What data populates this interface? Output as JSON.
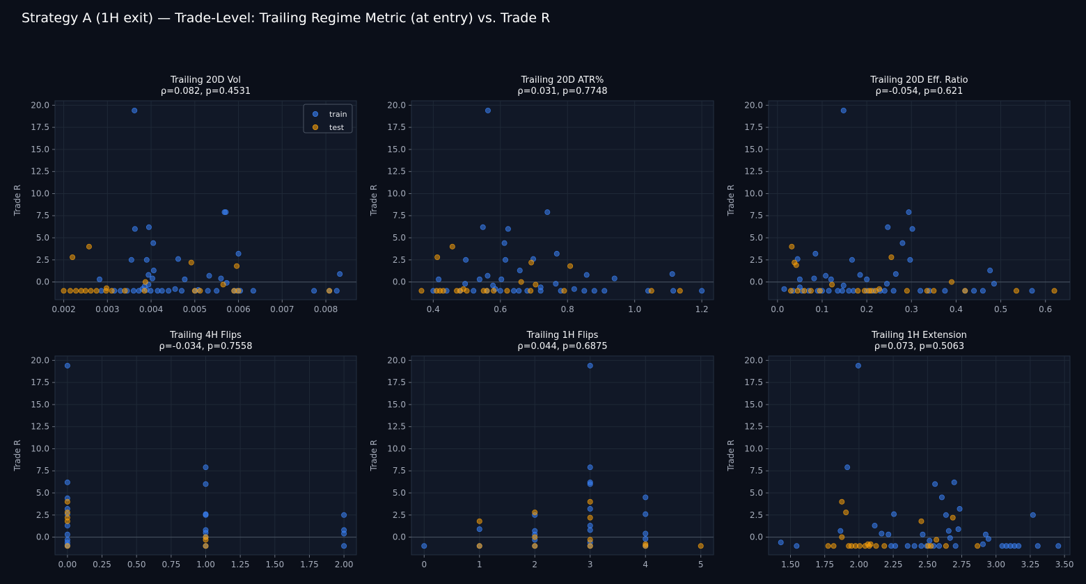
{
  "figure": {
    "title": "Strategy A (1H exit) — Trade-Level: Trailing Regime Metric (at entry) vs. Trade R"
  },
  "colors": {
    "background": "#0b0f19",
    "panel": "#111827",
    "grid": "#1f2937",
    "zero_line": "#4b5563",
    "train": "#3b82f6",
    "test": "#f59e0b"
  },
  "legend": {
    "placement": "upper-right",
    "panel": 0,
    "entries": [
      "train",
      "test"
    ]
  },
  "chart_data": [
    {
      "type": "scatter",
      "title": "Trailing 20D Vol",
      "subtitle": "ρ=0.082, p=0.4531",
      "xlabel": "",
      "ylabel": "Trade R",
      "xlim": [
        0.0018,
        0.0087
      ],
      "ylim": [
        -2.0,
        20.5
      ],
      "xticks": [
        0.002,
        0.003,
        0.004,
        0.005,
        0.006,
        0.007,
        0.008
      ],
      "xtick_labels": [
        "0.002",
        "0.003",
        "0.004",
        "0.005",
        "0.006",
        "0.007",
        "0.008"
      ],
      "yticks": [
        0,
        2.5,
        5,
        7.5,
        10,
        12.5,
        15,
        17.5,
        20
      ],
      "ytick_labels": [
        "0.0",
        "2.5",
        "5.0",
        "7.5",
        "10.0",
        "12.5",
        "15.0",
        "17.5",
        "20.0"
      ],
      "grid": true,
      "series": [
        {
          "name": "train",
          "x": [
            0.00362,
            0.00568,
            0.00363,
            0.00395,
            0.00405,
            0.00571,
            0.00355,
            0.0039,
            0.00462,
            0.006,
            0.00406,
            0.00832,
            0.00394,
            0.00533,
            0.00282,
            0.00403,
            0.0056,
            0.00477,
            0.00573,
            0.00385,
            0.00394,
            0.0038,
            0.0039,
            0.00399,
            0.00286,
            0.00316,
            0.0033,
            0.00345,
            0.0036,
            0.00372,
            0.00415,
            0.00425,
            0.0044,
            0.00455,
            0.0047,
            0.00501,
            0.0053,
            0.0055,
            0.0059,
            0.00597,
            0.00604,
            0.00634,
            0.00773,
            0.00808,
            0.00825,
            0.00508
          ],
          "y": [
            19.4,
            7.9,
            6.0,
            6.2,
            4.4,
            7.9,
            2.5,
            2.5,
            2.6,
            3.2,
            1.3,
            0.9,
            0.8,
            0.7,
            0.3,
            0.4,
            0.4,
            0.3,
            -0.1,
            -0.5,
            -0.3,
            -0.8,
            -0.9,
            -1.0,
            -1.0,
            -1.0,
            -1.0,
            -1.0,
            -1.0,
            -1.0,
            -1.0,
            -1.0,
            -1.0,
            -0.8,
            -1.0,
            -1.0,
            -1.0,
            -1.0,
            -1.0,
            -1.0,
            -1.0,
            -1.0,
            -1.0,
            -1.0,
            -1.0,
            -0.9
          ]
        },
        {
          "name": "test",
          "x": [
            0.0022,
            0.00258,
            0.00492,
            0.00596,
            0.00387,
            0.00565,
            0.002,
            0.00215,
            0.00228,
            0.0024,
            0.0025,
            0.00262,
            0.00275,
            0.00297,
            0.0031,
            0.0034,
            0.00385,
            0.005,
            0.00512,
            0.0059,
            0.006,
            0.00808,
            0.00298
          ],
          "y": [
            2.8,
            4.0,
            2.2,
            1.8,
            0.0,
            -0.3,
            -1.0,
            -1.0,
            -1.0,
            -1.0,
            -1.0,
            -1.0,
            -1.0,
            -1.0,
            -1.0,
            -1.0,
            -1.0,
            -1.0,
            -1.0,
            -1.0,
            -1.0,
            -1.0,
            -0.7
          ]
        }
      ]
    },
    {
      "type": "scatter",
      "title": "Trailing 20D ATR%",
      "subtitle": "ρ=0.031, p=0.7748",
      "xlabel": "",
      "ylabel": "Trade R",
      "xlim": [
        0.335,
        1.235
      ],
      "ylim": [
        -2.0,
        20.5
      ],
      "xticks": [
        0.4,
        0.6,
        0.8,
        1.0,
        1.2
      ],
      "xtick_labels": [
        "0.4",
        "0.6",
        "0.8",
        "1.0",
        "1.2"
      ],
      "yticks": [
        0,
        2.5,
        5,
        7.5,
        10,
        12.5,
        15,
        17.5,
        20
      ],
      "ytick_labels": [
        "0.0",
        "2.5",
        "5.0",
        "7.5",
        "10.0",
        "12.5",
        "15.0",
        "17.5",
        "20.0"
      ],
      "grid": true,
      "series": [
        {
          "name": "train",
          "x": [
            0.563,
            0.74,
            0.548,
            0.623,
            0.612,
            0.615,
            0.768,
            0.698,
            0.497,
            0.857,
            0.94,
            1.112,
            0.562,
            0.416,
            0.495,
            0.538,
            0.603,
            0.658,
            0.765,
            0.578,
            0.72,
            0.585,
            0.4,
            0.44,
            0.48,
            0.52,
            0.56,
            0.6,
            0.64,
            0.655,
            0.68,
            0.72,
            0.78,
            0.82,
            0.85,
            0.88,
            0.91,
            1.04,
            1.115,
            1.2
          ],
          "y": [
            19.4,
            7.9,
            6.2,
            6.0,
            4.4,
            2.5,
            3.2,
            2.6,
            2.5,
            0.8,
            0.4,
            0.9,
            0.7,
            0.3,
            -0.2,
            0.3,
            0.3,
            1.3,
            -0.2,
            -0.4,
            -0.6,
            -0.8,
            -1.0,
            -1.0,
            -1.0,
            -1.0,
            -1.0,
            -1.0,
            -1.0,
            -1.0,
            -1.0,
            -1.0,
            -1.0,
            -0.8,
            -1.0,
            -1.0,
            -1.0,
            -1.0,
            -1.0,
            -1.0
          ]
        },
        {
          "name": "test",
          "x": [
            0.412,
            0.457,
            0.692,
            0.808,
            0.662,
            0.705,
            0.365,
            0.41,
            0.42,
            0.43,
            0.47,
            0.48,
            0.49,
            0.5,
            0.55,
            0.56,
            0.58,
            0.62,
            0.69,
            0.79,
            1.05,
            1.135
          ],
          "y": [
            2.8,
            4.0,
            2.2,
            1.8,
            0.0,
            -0.3,
            -1.0,
            -1.0,
            -1.0,
            -1.0,
            -1.0,
            -1.0,
            -0.8,
            -1.0,
            -1.0,
            -1.0,
            -1.0,
            -1.0,
            -1.0,
            -1.0,
            -1.0,
            -1.0
          ]
        }
      ]
    },
    {
      "type": "scatter",
      "title": "Trailing 20D Eff. Ratio",
      "subtitle": "ρ=-0.054, p=0.621",
      "xlabel": "",
      "ylabel": "Trade R",
      "xlim": [
        -0.02,
        0.655
      ],
      "ylim": [
        -2.0,
        20.5
      ],
      "xticks": [
        0.0,
        0.1,
        0.2,
        0.3,
        0.4,
        0.5,
        0.6
      ],
      "xtick_labels": [
        "0.0",
        "0.1",
        "0.2",
        "0.3",
        "0.4",
        "0.5",
        "0.6"
      ],
      "yticks": [
        0,
        2.5,
        5,
        7.5,
        10,
        12.5,
        15,
        17.5,
        20
      ],
      "ytick_labels": [
        "0.0",
        "2.5",
        "5.0",
        "7.5",
        "10.0",
        "12.5",
        "15.0",
        "17.5",
        "20.0"
      ],
      "grid": true,
      "series": [
        {
          "name": "train",
          "x": [
            0.148,
            0.294,
            0.247,
            0.302,
            0.28,
            0.167,
            0.297,
            0.085,
            0.045,
            0.476,
            0.185,
            0.265,
            0.108,
            0.082,
            0.05,
            0.05,
            0.12,
            0.148,
            0.245,
            0.485,
            0.015,
            0.035,
            0.055,
            0.07,
            0.09,
            0.1,
            0.115,
            0.135,
            0.145,
            0.16,
            0.17,
            0.2,
            0.215,
            0.23,
            0.24,
            0.26,
            0.32,
            0.34,
            0.375,
            0.42,
            0.44,
            0.46,
            0.57,
            0.2
          ],
          "y": [
            19.4,
            7.9,
            6.2,
            6.0,
            4.4,
            2.5,
            2.5,
            3.2,
            2.6,
            1.3,
            0.8,
            0.9,
            0.7,
            0.4,
            0.3,
            -0.6,
            0.3,
            -0.4,
            -0.2,
            -0.2,
            -0.8,
            -1.0,
            -1.0,
            -1.0,
            -1.0,
            -1.0,
            -1.0,
            -1.0,
            -1.0,
            -1.0,
            -1.0,
            -1.0,
            -1.0,
            -1.0,
            -1.0,
            -1.0,
            -1.0,
            -1.0,
            -1.0,
            -1.0,
            -1.0,
            -1.0,
            -1.0,
            0.3
          ]
        },
        {
          "name": "test",
          "x": [
            0.032,
            0.038,
            0.042,
            0.255,
            0.39,
            0.122,
            0.03,
            0.045,
            0.06,
            0.075,
            0.095,
            0.18,
            0.195,
            0.205,
            0.21,
            0.22,
            0.228,
            0.29,
            0.335,
            0.35,
            0.42,
            0.535,
            0.62
          ],
          "y": [
            4.0,
            2.2,
            1.9,
            2.8,
            0.0,
            -0.3,
            -1.0,
            -1.0,
            -1.0,
            -1.0,
            -1.0,
            -1.0,
            -1.0,
            -1.0,
            -1.0,
            -1.0,
            -0.8,
            -1.0,
            -1.0,
            -1.0,
            -1.0,
            -1.0,
            -1.0
          ]
        }
      ]
    },
    {
      "type": "scatter",
      "title": "Trailing 4H Flips",
      "subtitle": "ρ=-0.034, p=0.7558",
      "xlabel": "",
      "ylabel": "Trade R",
      "xlim": [
        -0.09,
        2.09
      ],
      "ylim": [
        -2.0,
        20.5
      ],
      "xticks": [
        0.0,
        0.25,
        0.5,
        0.75,
        1.0,
        1.25,
        1.5,
        1.75,
        2.0
      ],
      "xtick_labels": [
        "0.00",
        "0.25",
        "0.50",
        "0.75",
        "1.00",
        "1.25",
        "1.50",
        "1.75",
        "2.00"
      ],
      "yticks": [
        0,
        2.5,
        5,
        7.5,
        10,
        12.5,
        15,
        17.5,
        20
      ],
      "ytick_labels": [
        "0.0",
        "2.5",
        "5.0",
        "7.5",
        "10.0",
        "12.5",
        "15.0",
        "17.5",
        "20.0"
      ],
      "grid": true,
      "series": [
        {
          "name": "train",
          "x": [
            0,
            0,
            0,
            0,
            0,
            0,
            0,
            0,
            0,
            0,
            0,
            1,
            1,
            1,
            1,
            1,
            1,
            1,
            1,
            2,
            2,
            2,
            2
          ],
          "y": [
            19.4,
            6.2,
            4.4,
            3.2,
            2.6,
            1.3,
            0.3,
            -0.3,
            -0.6,
            -0.9,
            -1.0,
            7.9,
            6.0,
            2.6,
            2.5,
            0.8,
            0.5,
            0.0,
            -1.0,
            2.5,
            0.8,
            0.4,
            -1.0
          ]
        },
        {
          "name": "test",
          "x": [
            0,
            0,
            0,
            0,
            0,
            1,
            1,
            1
          ],
          "y": [
            4.0,
            2.8,
            2.2,
            1.8,
            -1.0,
            0.0,
            -0.3,
            -1.0
          ]
        }
      ]
    },
    {
      "type": "scatter",
      "title": "Trailing 1H Flips",
      "subtitle": "ρ=0.044, p=0.6875",
      "xlabel": "",
      "ylabel": "Trade R",
      "xlim": [
        -0.23,
        5.23
      ],
      "ylim": [
        -2.0,
        20.5
      ],
      "xticks": [
        0,
        1,
        2,
        3,
        4,
        5
      ],
      "xtick_labels": [
        "0",
        "1",
        "2",
        "3",
        "4",
        "5"
      ],
      "yticks": [
        0,
        2.5,
        5,
        7.5,
        10,
        12.5,
        15,
        17.5,
        20
      ],
      "ytick_labels": [
        "0.0",
        "2.5",
        "5.0",
        "7.5",
        "10.0",
        "12.5",
        "15.0",
        "17.5",
        "20.0"
      ],
      "grid": true,
      "series": [
        {
          "name": "train",
          "x": [
            0,
            1,
            1,
            2,
            2,
            2,
            2,
            2,
            3,
            3,
            3,
            3,
            3,
            3,
            3,
            3,
            3,
            4,
            4,
            4,
            4,
            4
          ],
          "y": [
            -1.0,
            0.9,
            -1.0,
            2.5,
            0.7,
            0.3,
            -0.3,
            -1.0,
            19.4,
            7.9,
            6.2,
            6.0,
            3.2,
            1.3,
            0.8,
            -0.6,
            -1.0,
            4.5,
            2.6,
            0.4,
            -0.2,
            -1.0
          ]
        },
        {
          "name": "test",
          "x": [
            1,
            1,
            2,
            2,
            2,
            3,
            3,
            3,
            3,
            4,
            4,
            5
          ],
          "y": [
            1.8,
            -1.0,
            2.8,
            0.0,
            -1.0,
            4.0,
            2.2,
            -0.3,
            -1.0,
            -0.8,
            -1.0,
            -1.0
          ]
        }
      ]
    },
    {
      "type": "scatter",
      "title": "Trailing 1H Extension",
      "subtitle": "ρ=0.073, p=0.5063",
      "xlabel": "",
      "ylabel": "Trade R",
      "xlim": [
        1.34,
        3.54
      ],
      "ylim": [
        -2.0,
        20.5
      ],
      "xticks": [
        1.5,
        1.75,
        2.0,
        2.25,
        2.5,
        2.75,
        3.0,
        3.25,
        3.5
      ],
      "xtick_labels": [
        "1.50",
        "1.75",
        "2.00",
        "2.25",
        "2.50",
        "2.75",
        "3.00",
        "3.25",
        "3.50"
      ],
      "yticks": [
        0,
        2.5,
        5,
        7.5,
        10,
        12.5,
        15,
        17.5,
        20
      ],
      "ytick_labels": [
        "0.0",
        "2.5",
        "5.0",
        "7.5",
        "10.0",
        "12.5",
        "15.0",
        "17.5",
        "20.0"
      ],
      "grid": true,
      "series": [
        {
          "name": "train",
          "x": [
            1.995,
            1.915,
            2.695,
            2.555,
            2.605,
            2.735,
            2.255,
            3.27,
            2.725,
            2.635,
            2.115,
            1.865,
            2.655,
            2.465,
            2.925,
            2.165,
            2.215,
            2.945,
            2.515,
            2.665,
            1.43,
            2.905,
            1.545,
            2.235,
            2.265,
            2.355,
            2.405,
            2.455,
            2.495,
            2.545,
            2.585,
            2.705,
            3.045,
            3.075,
            3.105,
            3.135,
            3.165,
            3.305,
            3.455
          ],
          "y": [
            19.4,
            7.9,
            6.2,
            6.0,
            4.5,
            3.2,
            2.6,
            2.5,
            0.9,
            2.5,
            1.3,
            0.7,
            0.7,
            0.3,
            0.3,
            0.4,
            0.3,
            -0.2,
            -0.4,
            -0.1,
            -0.6,
            -0.8,
            -1.0,
            -1.0,
            -1.0,
            -1.0,
            -1.0,
            -1.0,
            -1.0,
            -1.0,
            -1.0,
            -1.0,
            -1.0,
            -1.0,
            -1.0,
            -1.0,
            -1.0,
            -1.0,
            -1.0
          ]
        },
        {
          "name": "test",
          "x": [
            1.875,
            1.905,
            2.685,
            2.455,
            1.875,
            2.565,
            1.775,
            1.815,
            1.925,
            1.945,
            1.975,
            2.005,
            2.045,
            2.075,
            2.085,
            2.125,
            2.185,
            2.505,
            2.525,
            2.635,
            2.865,
            2.065
          ],
          "y": [
            4.0,
            2.8,
            2.2,
            1.8,
            0.0,
            -0.3,
            -1.0,
            -1.0,
            -1.0,
            -1.0,
            -1.0,
            -1.0,
            -1.0,
            -1.0,
            -0.8,
            -1.0,
            -1.0,
            -1.0,
            -1.0,
            -1.0,
            -1.0,
            -0.8
          ]
        }
      ]
    }
  ]
}
